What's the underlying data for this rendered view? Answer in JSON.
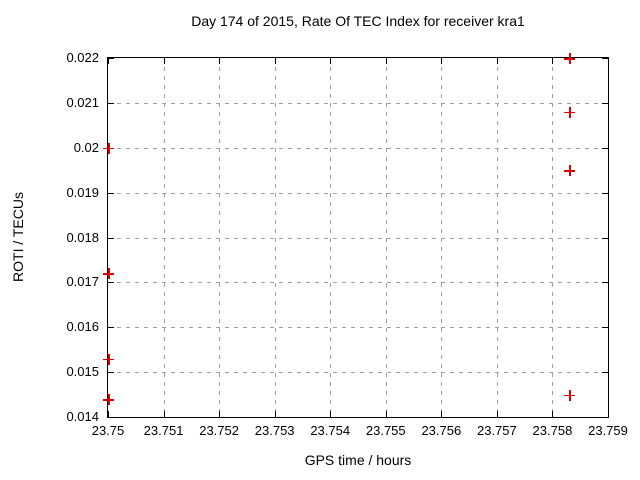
{
  "chart_data": {
    "type": "scatter",
    "title": "Day 174 of 2015, Rate Of TEC Index for receiver kra1",
    "xlabel": "GPS time / hours",
    "ylabel": "ROTI / TECUs",
    "xlim": [
      23.75,
      23.759
    ],
    "ylim": [
      0.014,
      0.022
    ],
    "x_ticks": [
      23.75,
      23.751,
      23.752,
      23.753,
      23.754,
      23.755,
      23.756,
      23.757,
      23.758,
      23.759
    ],
    "x_tick_labels": [
      "23.75",
      "23.751",
      "23.752",
      "23.753",
      "23.754",
      "23.755",
      "23.756",
      "23.757",
      "23.758",
      "23.759"
    ],
    "y_ticks": [
      0.014,
      0.015,
      0.016,
      0.017,
      0.018,
      0.019,
      0.02,
      0.021,
      0.022
    ],
    "y_tick_labels": [
      "0.014",
      "0.015",
      "0.016",
      "0.017",
      "0.018",
      "0.019",
      "0.02",
      "0.021",
      "0.022"
    ],
    "grid": true,
    "grid_style": "dashed-gray",
    "legend_position": "none",
    "marker": "plus",
    "marker_color": "#e00000",
    "axis_color": "#000000",
    "grid_color": "#a0a0a0",
    "background_color": "#ffffff",
    "points": [
      {
        "x": 23.75,
        "y": 0.02
      },
      {
        "x": 23.75,
        "y": 0.0172
      },
      {
        "x": 23.75,
        "y": 0.0153
      },
      {
        "x": 23.75,
        "y": 0.0144
      },
      {
        "x": 23.7583,
        "y": 0.022
      },
      {
        "x": 23.7583,
        "y": 0.0208
      },
      {
        "x": 23.7583,
        "y": 0.0195
      },
      {
        "x": 23.7583,
        "y": 0.0145
      }
    ]
  }
}
